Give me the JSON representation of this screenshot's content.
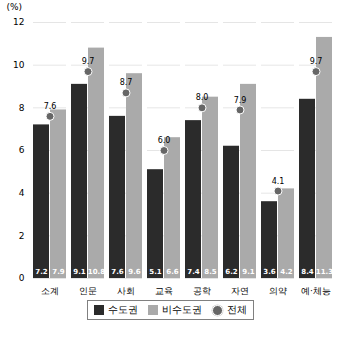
{
  "chart_data": {
    "type": "bar",
    "categories": [
      "소계",
      "인문",
      "사회",
      "교육",
      "공학",
      "자연",
      "의약",
      "예·체능"
    ],
    "series": [
      {
        "name": "수도권",
        "color": "#2b2b2b",
        "values": [
          7.2,
          9.1,
          7.6,
          5.1,
          7.4,
          6.2,
          3.6,
          8.4
        ]
      },
      {
        "name": "비수도권",
        "color": "#aaaaaa",
        "values": [
          7.9,
          10.8,
          9.6,
          6.6,
          8.5,
          9.1,
          4.2,
          11.3
        ]
      },
      {
        "name": "전체",
        "color": "#666666",
        "type": "scatter",
        "marker": "o",
        "values": [
          7.6,
          9.7,
          8.7,
          6.0,
          8.0,
          7.9,
          4.1,
          9.7
        ],
        "value_labels": [
          "7.6",
          "9.7",
          "8.7",
          "6.0",
          "8.0",
          "7.9",
          "4.1",
          "9.7"
        ]
      }
    ],
    "ylabel": "(%)",
    "ylim": [
      0,
      12
    ],
    "yticks": [
      0,
      2,
      4,
      6,
      8,
      10,
      12
    ],
    "grid": true,
    "data_labels": true,
    "legend": "bottom"
  }
}
